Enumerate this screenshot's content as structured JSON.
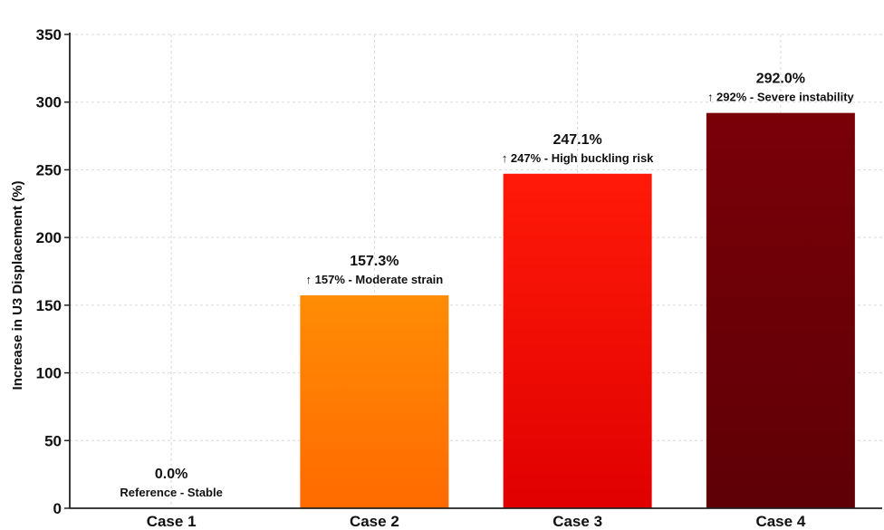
{
  "chart_data": {
    "type": "bar",
    "categories": [
      "Case 1",
      "Case 2",
      "Case 3",
      "Case 4"
    ],
    "values": [
      0.0,
      157.3,
      247.1,
      292.0
    ],
    "value_labels": [
      "0.0%",
      "157.3%",
      "247.1%",
      "292.0%"
    ],
    "annotations": [
      "Reference - Stable",
      "↑ 157% - Moderate strain",
      "↑ 247% - High buckling risk",
      "↑ 292% - Severe instability"
    ],
    "colors": [
      [
        "#ffffff",
        "#ffffff"
      ],
      [
        "#ff8c05",
        "#ff6a00"
      ],
      [
        "#ff1a08",
        "#e00000"
      ],
      [
        "#7a0008",
        "#5e0006"
      ]
    ],
    "title": "",
    "xlabel": "",
    "ylabel": "Increase in U3 Displacement (%)",
    "ylim": [
      0,
      350
    ],
    "yticks": [
      0,
      50,
      100,
      150,
      200,
      250,
      300,
      350
    ],
    "grid": true
  }
}
